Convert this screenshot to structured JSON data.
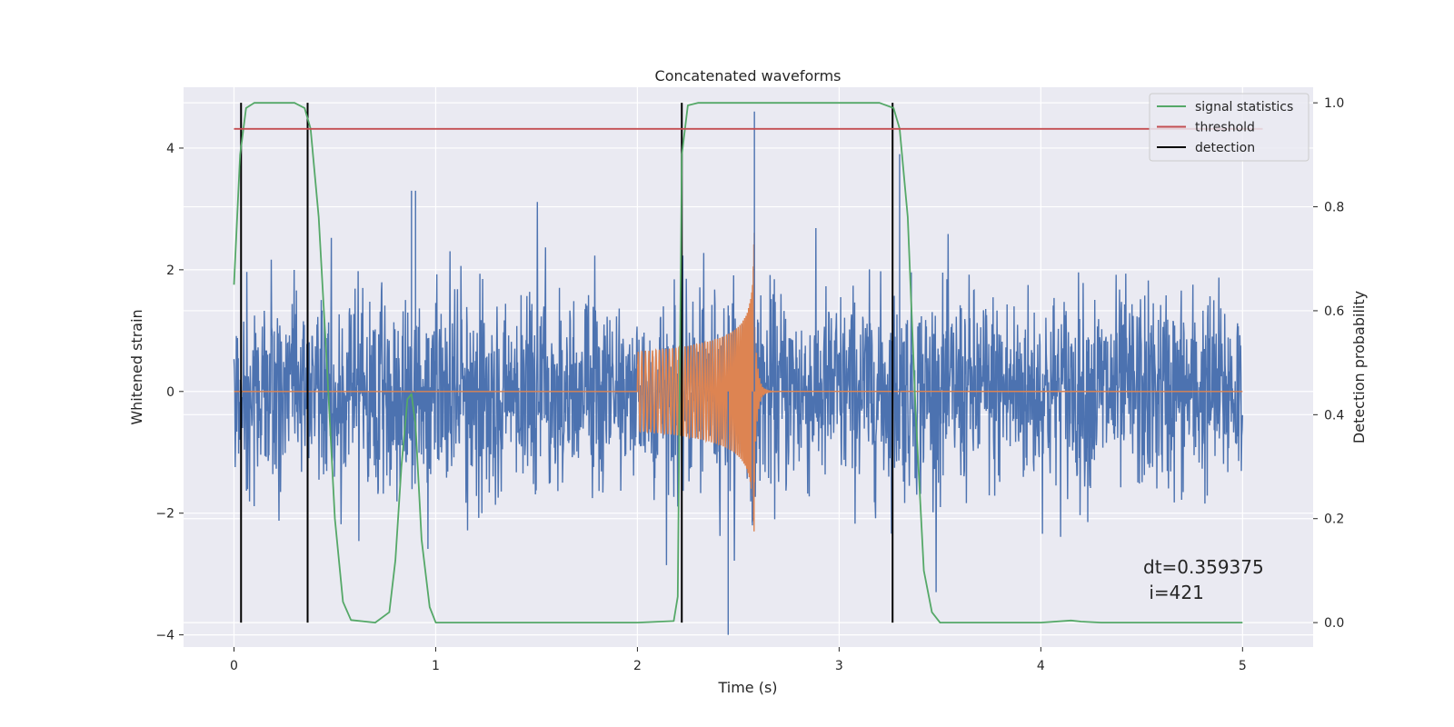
{
  "chart_data": {
    "type": "line",
    "title": "Concatenated waveforms",
    "xlabel": "Time (s)",
    "ylabel": "Whitened strain",
    "y2label": "Detection probability",
    "xlim": [
      -0.25,
      5.35
    ],
    "ylim": [
      -4.2,
      5.0
    ],
    "y2lim": [
      -0.047,
      1.03
    ],
    "x_ticks": [
      0,
      1,
      2,
      3,
      4,
      5
    ],
    "x_tick_labels": [
      "0",
      "1",
      "2",
      "3",
      "4",
      "5"
    ],
    "y_ticks": [
      -4,
      -2,
      0,
      2,
      4
    ],
    "y_tick_labels": [
      "−4",
      "−2",
      "0",
      "2",
      "4"
    ],
    "y2_ticks": [
      0.0,
      0.2,
      0.4,
      0.6,
      0.8,
      1.0
    ],
    "y2_tick_labels": [
      "0.0",
      "0.2",
      "0.4",
      "0.6",
      "0.8",
      "1.0"
    ],
    "grid": true,
    "legend_position": "top-right",
    "legend": [
      {
        "label": "signal statistics",
        "color": "#55a868"
      },
      {
        "label": "threshold",
        "color": "#c44e52"
      },
      {
        "label": "detection",
        "color": "#000000"
      }
    ],
    "series": [
      {
        "name": "signal statistics",
        "axis": "right",
        "color": "#55a868",
        "x": [
          0.0,
          0.03,
          0.06,
          0.1,
          0.3,
          0.35,
          0.38,
          0.42,
          0.46,
          0.5,
          0.54,
          0.58,
          0.7,
          0.77,
          0.8,
          0.83,
          0.86,
          0.88,
          0.9,
          0.93,
          0.97,
          1.0,
          1.5,
          2.0,
          2.18,
          2.2,
          2.22,
          2.25,
          2.3,
          2.8,
          3.2,
          3.27,
          3.3,
          3.34,
          3.38,
          3.42,
          3.46,
          3.5,
          3.6,
          4.0,
          4.15,
          4.2,
          4.3,
          5.0
        ],
        "y": [
          0.65,
          0.9,
          0.99,
          1.0,
          1.0,
          0.99,
          0.95,
          0.78,
          0.5,
          0.2,
          0.04,
          0.005,
          0.0,
          0.02,
          0.12,
          0.3,
          0.43,
          0.44,
          0.38,
          0.16,
          0.03,
          0.0,
          0.0,
          0.0,
          0.003,
          0.05,
          0.9,
          0.995,
          1.0,
          1.0,
          1.0,
          0.99,
          0.95,
          0.78,
          0.4,
          0.1,
          0.02,
          0.0,
          0.0,
          0.0,
          0.004,
          0.002,
          0.0,
          0.0
        ]
      },
      {
        "name": "threshold",
        "axis": "right",
        "color": "#c44e52",
        "x": [
          0.0,
          5.1
        ],
        "y": [
          0.95,
          0.95
        ]
      }
    ],
    "noise_color": "#4c72b0",
    "chirp_color": "#dd8452",
    "chirp_window": [
      2.0,
      3.0
    ],
    "detection_lines": [
      0.035,
      0.365,
      2.22,
      3.265
    ],
    "annotation": "dt=0.359375\n i=421"
  }
}
